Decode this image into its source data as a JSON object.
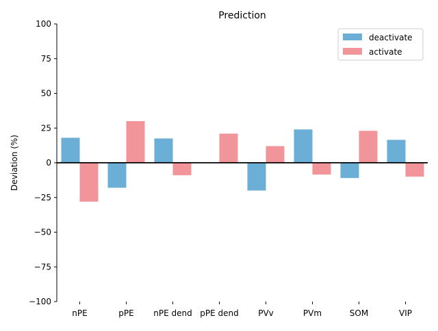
{
  "chart_data": {
    "type": "bar",
    "title": "Prediction",
    "xlabel": "",
    "ylabel": "Deviation (%)",
    "ylim": [
      -100,
      100
    ],
    "yticks": [
      100,
      75,
      50,
      25,
      0,
      -25,
      -50,
      -75,
      -100
    ],
    "categories": [
      "nPE",
      "pPE",
      "nPE dend",
      "pPE dend",
      "PVv",
      "PVm",
      "SOM",
      "VIP"
    ],
    "series": [
      {
        "name": "deactivate",
        "color": "#6baed6",
        "values": [
          18,
          -18,
          17.5,
          0,
          -20,
          24,
          -11,
          16.5
        ]
      },
      {
        "name": "activate",
        "color": "#f1959b",
        "values": [
          -28,
          30,
          -9,
          21,
          12,
          -8.5,
          23,
          -10
        ]
      }
    ],
    "legend_position": "top-right",
    "grid": false
  }
}
